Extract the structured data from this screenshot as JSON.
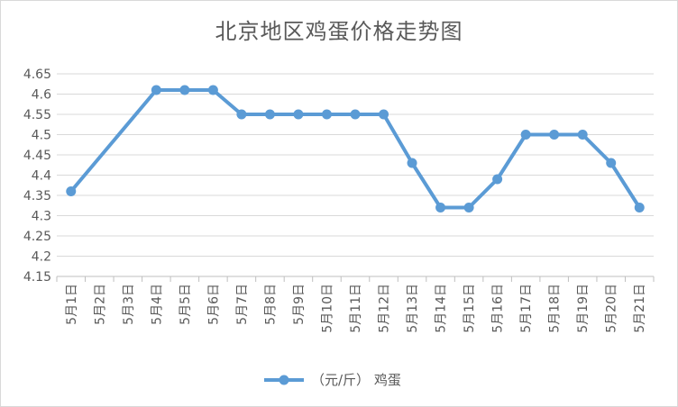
{
  "chart_data": {
    "type": "line",
    "title": "北京地区鸡蛋价格走势图",
    "categories": [
      "5月1日",
      "5月2日",
      "5月3日",
      "5月4日",
      "5月5日",
      "5月6日",
      "5月7日",
      "5月8日",
      "5月9日",
      "5月10日",
      "5月11日",
      "5月12日",
      "5月13日",
      "5月14日",
      "5月15日",
      "5月16日",
      "5月17日",
      "5月18日",
      "5月19日",
      "5月20日",
      "5月21日"
    ],
    "series": [
      {
        "name": "（元/斤） 鸡蛋",
        "values": [
          4.36,
          null,
          null,
          4.61,
          4.61,
          4.61,
          4.55,
          4.55,
          4.55,
          4.55,
          4.55,
          4.55,
          4.43,
          4.32,
          4.32,
          4.39,
          4.5,
          4.5,
          4.5,
          4.43,
          4.32
        ],
        "color": "#5b9bd5"
      }
    ],
    "ylim": [
      4.15,
      4.65
    ],
    "yticks": [
      "4.15",
      "4.2",
      "4.25",
      "4.3",
      "4.35",
      "4.4",
      "4.45",
      "4.5",
      "4.55",
      "4.6",
      "4.65"
    ],
    "grid": true,
    "legend_position": "bottom",
    "gap_handling": "connect"
  }
}
